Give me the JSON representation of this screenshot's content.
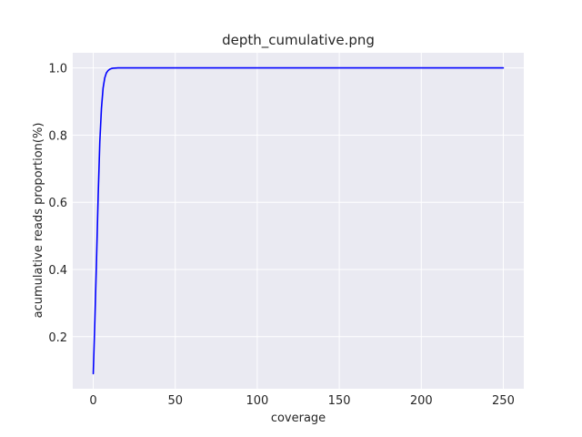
{
  "chart_data": {
    "type": "line",
    "title": "depth_cumulative.png",
    "xlabel": "coverage",
    "ylabel": "acumulative reads proportion(%)",
    "xlim": [
      -12.5,
      262.5
    ],
    "ylim": [
      0.045,
      1.045
    ],
    "x_ticks": [
      0,
      50,
      100,
      150,
      200,
      250
    ],
    "y_ticks": [
      0.2,
      0.4,
      0.6,
      0.8,
      1.0
    ],
    "x_tick_labels": [
      "0",
      "50",
      "100",
      "150",
      "200",
      "250"
    ],
    "y_tick_labels": [
      "0.2",
      "0.4",
      "0.6",
      "0.8",
      "1.0"
    ],
    "grid": true,
    "background": "#eaeaf2",
    "grid_color": "#ffffff",
    "series": [
      {
        "color": "#0000ff",
        "x": [
          0,
          1,
          2,
          3,
          4,
          5,
          6,
          7,
          8,
          9,
          10,
          11,
          12,
          15,
          20,
          30,
          50,
          100,
          150,
          200,
          250
        ],
        "y": [
          0.09,
          0.25,
          0.43,
          0.62,
          0.78,
          0.88,
          0.94,
          0.97,
          0.985,
          0.992,
          0.996,
          0.998,
          0.999,
          1.0,
          1.0,
          1.0,
          1.0,
          1.0,
          1.0,
          1.0,
          1.0
        ]
      }
    ]
  }
}
